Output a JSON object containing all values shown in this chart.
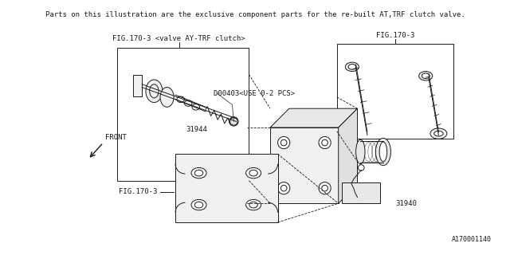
{
  "title_text": "Parts on this illustration are the exclusive component parts for the re-built AT,TRF clutch valve.",
  "fig_label_left": "FIG.170-3 <valve AY-TRF clutch>",
  "fig_label_right": "FIG.170-3",
  "fig_label_bottom": "FIG.170-3",
  "part_label_d00403": "D00403<USE 0-2 PCS>",
  "part_label_31944": "31944",
  "part_label_31940": "31940",
  "front_label": "FRONT",
  "diagram_id": "A170001140",
  "bg_color": "#ffffff",
  "line_color": "#1a1a1a",
  "text_color": "#1a1a1a",
  "title_fontsize": 6.5,
  "label_fontsize": 6.5,
  "part_fontsize": 6.5
}
